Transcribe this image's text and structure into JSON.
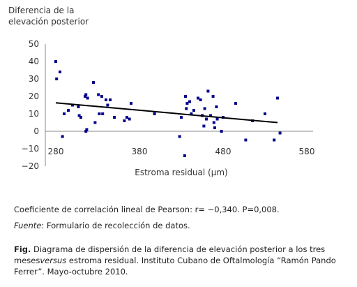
{
  "chart_data": {
    "type": "scatter",
    "ytitle_line1": "Diferencia de la",
    "ytitle_line2": "elevación posterior",
    "xlabel": "Estroma residual (µm)",
    "xlim": [
      270,
      550
    ],
    "ylim": [
      -20,
      50
    ],
    "xticks": [
      280,
      380,
      480,
      580
    ],
    "yticks": [
      50,
      40,
      30,
      20,
      10,
      0,
      -10,
      -20
    ],
    "trend_line": {
      "x": [
        280,
        545
      ],
      "y": [
        16.3,
        5
      ]
    },
    "points": [
      {
        "x": 280,
        "y": 40
      },
      {
        "x": 281,
        "y": 30
      },
      {
        "x": 285,
        "y": 34
      },
      {
        "x": 288,
        "y": -3
      },
      {
        "x": 290,
        "y": 10
      },
      {
        "x": 295,
        "y": 12
      },
      {
        "x": 300,
        "y": 15
      },
      {
        "x": 307,
        "y": 14
      },
      {
        "x": 308,
        "y": 9
      },
      {
        "x": 310,
        "y": 8
      },
      {
        "x": 315,
        "y": 20
      },
      {
        "x": 316,
        "y": 21
      },
      {
        "x": 318,
        "y": 19
      },
      {
        "x": 316,
        "y": 0
      },
      {
        "x": 317,
        "y": 1
      },
      {
        "x": 325,
        "y": 28
      },
      {
        "x": 327,
        "y": 5
      },
      {
        "x": 331,
        "y": 21
      },
      {
        "x": 332,
        "y": 10
      },
      {
        "x": 335,
        "y": 20
      },
      {
        "x": 336,
        "y": 10
      },
      {
        "x": 340,
        "y": 18
      },
      {
        "x": 342,
        "y": 15
      },
      {
        "x": 345,
        "y": 18
      },
      {
        "x": 350,
        "y": 8
      },
      {
        "x": 362,
        "y": 6
      },
      {
        "x": 365,
        "y": 8
      },
      {
        "x": 368,
        "y": 7
      },
      {
        "x": 370,
        "y": 16
      },
      {
        "x": 398,
        "y": 10
      },
      {
        "x": 428,
        "y": -3
      },
      {
        "x": 430,
        "y": 8
      },
      {
        "x": 434,
        "y": -14
      },
      {
        "x": 435,
        "y": 20
      },
      {
        "x": 436,
        "y": 13
      },
      {
        "x": 437,
        "y": 16
      },
      {
        "x": 440,
        "y": 17
      },
      {
        "x": 442,
        "y": 10
      },
      {
        "x": 445,
        "y": 12
      },
      {
        "x": 450,
        "y": 19
      },
      {
        "x": 453,
        "y": 18
      },
      {
        "x": 455,
        "y": 9
      },
      {
        "x": 457,
        "y": 3
      },
      {
        "x": 458,
        "y": 13
      },
      {
        "x": 460,
        "y": 7
      },
      {
        "x": 462,
        "y": 23
      },
      {
        "x": 465,
        "y": 9
      },
      {
        "x": 468,
        "y": 20
      },
      {
        "x": 469,
        "y": 5
      },
      {
        "x": 470,
        "y": 2
      },
      {
        "x": 472,
        "y": 14
      },
      {
        "x": 473,
        "y": 7
      },
      {
        "x": 478,
        "y": 0
      },
      {
        "x": 480,
        "y": 8
      },
      {
        "x": 495,
        "y": 16
      },
      {
        "x": 507,
        "y": -5
      },
      {
        "x": 515,
        "y": 6
      },
      {
        "x": 530,
        "y": 10
      },
      {
        "x": 541,
        "y": -5
      },
      {
        "x": 545,
        "y": 19
      },
      {
        "x": 548,
        "y": -1
      }
    ],
    "point_color": "#00008b",
    "line_color": "#000000"
  },
  "captions": {
    "stats": "Coeficiente de correlación lineal de Pearson:  r= −0,340.  P=0,008.",
    "source_label": "Fuente",
    "source_rest": ": Formulario de recolección de datos.",
    "fig_label": "Fig.",
    "fig_part1": " Diagrama de dispersión de la diferencia de elevación posterior a los tres meses",
    "fig_versus": "versus",
    "fig_part2": " estroma residual. Instituto Cubano de Oftalmología “Ramón Pando Ferrer”. Mayo-octubre 2010."
  }
}
